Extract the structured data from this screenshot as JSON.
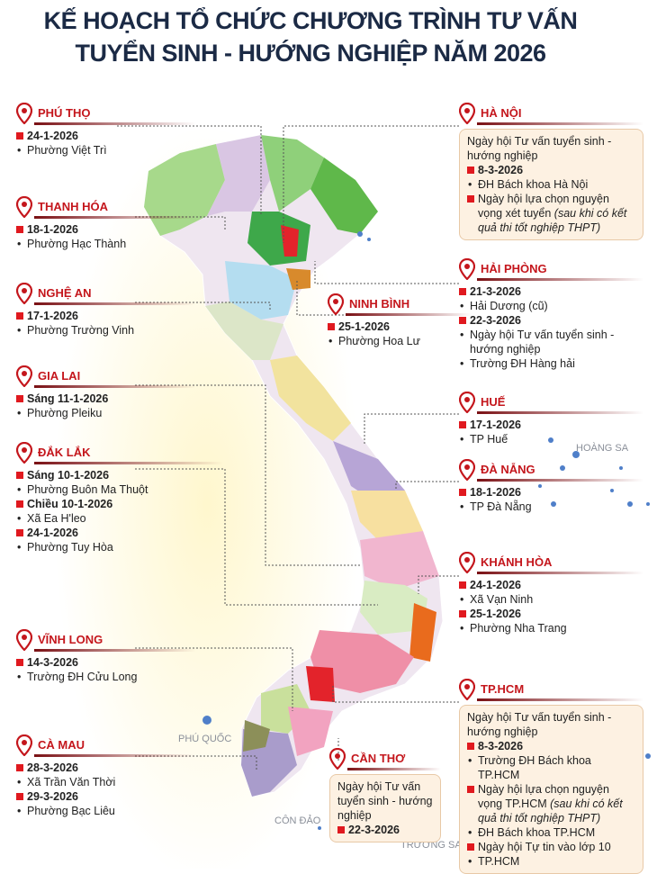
{
  "title": [
    "KẾ HOẠCH TỔ CHỨC CHƯƠNG TRÌNH TƯ VẤN",
    "TUYỂN SINH - HƯỚNG NGHIỆP NĂM 2026"
  ],
  "locations": [
    {
      "name": "PHÚ THỌ",
      "lines": [
        {
          "date": "24-1-2026"
        },
        {
          "place": "Phường Việt Trì"
        }
      ]
    },
    {
      "name": "THANH HÓA",
      "lines": [
        {
          "date": "18-1-2026"
        },
        {
          "place": "Phường Hạc Thành"
        }
      ]
    },
    {
      "name": "NGHỆ AN",
      "lines": [
        {
          "date": "17-1-2026"
        },
        {
          "place": "Phường Trường Vinh"
        }
      ]
    },
    {
      "name": "GIA LAI",
      "lines": [
        {
          "date": "Sáng 11-1-2026"
        },
        {
          "place": "Phường Pleiku"
        }
      ]
    },
    {
      "name": "ĐẮK LẮK",
      "lines": [
        {
          "date": "Sáng 10-1-2026"
        },
        {
          "place": "Phường Buôn Ma Thuột"
        },
        {
          "date": "Chiều 10-1-2026"
        },
        {
          "place": "Xã Ea H'leo"
        },
        {
          "date": "24-1-2026"
        },
        {
          "place": "Phường Tuy Hòa"
        }
      ]
    },
    {
      "name": "VĨNH LONG",
      "lines": [
        {
          "date": "14-3-2026"
        },
        {
          "place": "Trường ĐH Cửu Long"
        }
      ]
    },
    {
      "name": "CÀ MAU",
      "lines": [
        {
          "date": "28-3-2026"
        },
        {
          "place": "Xã Trần Văn Thời"
        },
        {
          "date": "29-3-2026"
        },
        {
          "place": "Phường Bạc Liêu"
        }
      ]
    },
    {
      "name": "HÀ NỘI",
      "lines": [
        {
          "text": "Ngày hội Tư vấn tuyển sinh - hướng nghiệp"
        },
        {
          "date": "8-3-2026"
        },
        {
          "place": "ĐH Bách khoa Hà Nội"
        },
        {
          "event": "Ngày hội lựa chọn nguyện vọng xét tuyển",
          "note": "(sau khi có kết quả thi tốt nghiệp THPT)"
        }
      ]
    },
    {
      "name": "NINH BÌNH",
      "lines": [
        {
          "date": "25-1-2026"
        },
        {
          "place": "Phường Hoa Lư"
        }
      ]
    },
    {
      "name": "HẢI PHÒNG",
      "lines": [
        {
          "date": "21-3-2026"
        },
        {
          "place": "Hải Dương (cũ)"
        },
        {
          "date": "22-3-2026"
        },
        {
          "place": "Ngày hội Tư vấn tuyển sinh - hướng nghiệp"
        },
        {
          "place": "Trường ĐH Hàng hải"
        }
      ]
    },
    {
      "name": "HUẾ",
      "lines": [
        {
          "date": "17-1-2026"
        },
        {
          "place": "TP Huế"
        }
      ]
    },
    {
      "name": "ĐÀ NẴNG",
      "lines": [
        {
          "date": "18-1-2026"
        },
        {
          "place": "TP Đà Nẵng"
        }
      ]
    },
    {
      "name": "KHÁNH HÒA",
      "lines": [
        {
          "date": "24-1-2026"
        },
        {
          "place": "Xã Vạn Ninh"
        },
        {
          "date": "25-1-2026"
        },
        {
          "place": "Phường Nha Trang"
        }
      ]
    },
    {
      "name": "TP.HCM",
      "lines": [
        {
          "text": "Ngày hội Tư vấn tuyển sinh - hướng nghiệp"
        },
        {
          "date": "8-3-2026"
        },
        {
          "place": "Trường ĐH Bách khoa TP.HCM"
        },
        {
          "event": "Ngày hội lựa chọn nguyện vọng TP.HCM",
          "note": "(sau khi có kết quả thi tốt nghiệp THPT)"
        },
        {
          "place": "ĐH Bách khoa TP.HCM"
        },
        {
          "event": "Ngày hội Tự tin vào lớp 10"
        },
        {
          "place": "TP.HCM"
        }
      ]
    },
    {
      "name": "CẦN THƠ",
      "lines": [
        {
          "text": "Ngày hội Tư vấn tuyển sinh - hướng nghiệp"
        },
        {
          "date": "22-3-2026"
        }
      ]
    }
  ],
  "map_labels": [
    "HOÀNG SA",
    "PHÚ QUỐC",
    "CÔN ĐẢO",
    "TRƯỜNG SA"
  ]
}
